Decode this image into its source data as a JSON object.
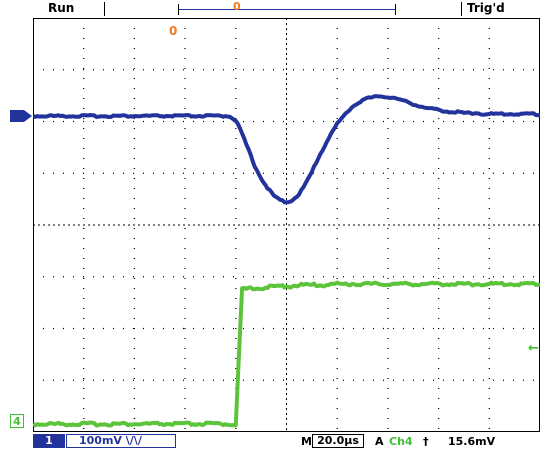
{
  "status": {
    "run_state": "Run",
    "trigger_state": "Trig'd",
    "record_marker": "0",
    "trigger_position_marker": "0"
  },
  "channels": {
    "ch1": {
      "marker": "",
      "color": "#23339c"
    },
    "ch4": {
      "marker": "4",
      "color": "#3fbf33"
    },
    "trigger_level_marker": "←"
  },
  "bottom": {
    "channel_badge": "1",
    "channel_scale": "100mV \\/\\/",
    "m_label": "M",
    "timebase": "20.0µs",
    "a_label": "A",
    "trigger_source": "Ch4",
    "trigger_slope": "†",
    "trigger_level": "15.6mV"
  },
  "colors": {
    "accent_orange": "#f47a1e",
    "trace_blue": "#23339c",
    "trace_green": "#5cc43b"
  },
  "traces": {
    "ch1_samples": [
      0,
      0,
      0,
      0,
      0,
      0,
      0,
      0,
      0,
      0,
      0,
      0,
      0,
      0,
      0,
      0,
      0,
      0,
      0,
      0,
      0,
      0,
      0,
      0,
      0,
      0,
      0,
      0,
      0,
      0,
      0,
      0,
      -4,
      -18,
      -34,
      -50,
      -62,
      -72,
      -80,
      -84,
      -86,
      -84,
      -78,
      -68,
      -56,
      -42,
      -30,
      -18,
      -8,
      0,
      7,
      12,
      16,
      18,
      19,
      20,
      19,
      18,
      16,
      14,
      12,
      10,
      8,
      7,
      6,
      5,
      4,
      4,
      3,
      3,
      3,
      2,
      2,
      2,
      2,
      2,
      2,
      2,
      2,
      2,
      1
    ],
    "ch4_samples": [
      0,
      0,
      0,
      0,
      0,
      0,
      0,
      0,
      0,
      0,
      0,
      0,
      0,
      0,
      0,
      0,
      0,
      0,
      0,
      0,
      0,
      0,
      0,
      0,
      0,
      0,
      0,
      0,
      0,
      0,
      0,
      0,
      0,
      135,
      135,
      136,
      136,
      137,
      137,
      138,
      138,
      138,
      139,
      139,
      139,
      139,
      139,
      140,
      140,
      140,
      140,
      140,
      140,
      140,
      140,
      140,
      140,
      140,
      140,
      140,
      140,
      140,
      140,
      140,
      140,
      140,
      140,
      140,
      140,
      140,
      140,
      140,
      140,
      140,
      140,
      140,
      140,
      140,
      140,
      140,
      140
    ]
  }
}
